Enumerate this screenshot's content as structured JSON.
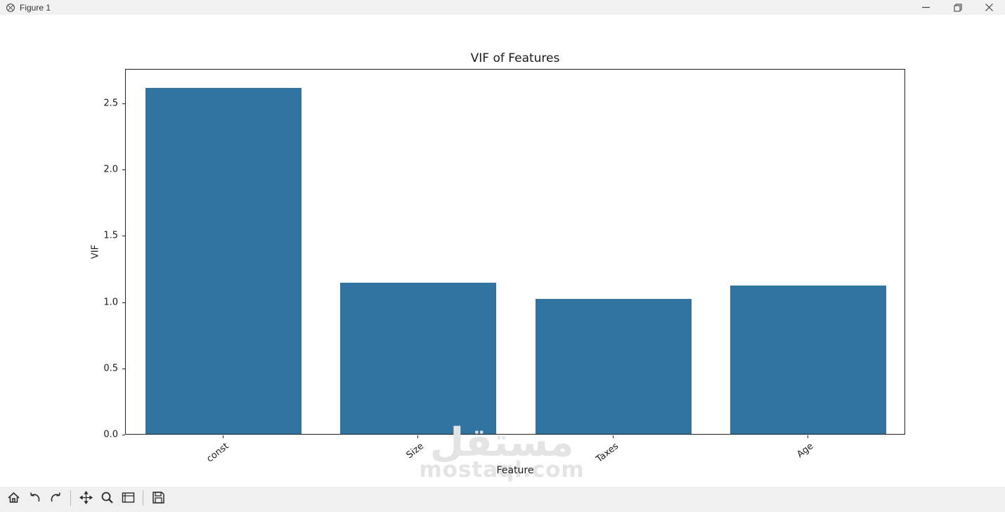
{
  "window": {
    "title": "Figure 1",
    "controls": {
      "minimize": "minimize",
      "restore": "restore",
      "close": "close"
    }
  },
  "chart_data": {
    "type": "bar",
    "title": "VIF of Features",
    "xlabel": "Feature",
    "ylabel": "VIF",
    "categories": [
      "const",
      "Size",
      "Taxes",
      "Age"
    ],
    "values": [
      2.61,
      1.14,
      1.02,
      1.12
    ],
    "ylim": [
      0,
      2.76
    ],
    "yticks": [
      0.0,
      0.5,
      1.0,
      1.5,
      2.0,
      2.5
    ],
    "ytick_labels": [
      "0.0",
      "0.5",
      "1.0",
      "1.5",
      "2.0",
      "2.5"
    ],
    "xtick_rotation_deg": 38,
    "bar_color": "#3274a1",
    "bar_width_frac": 0.8,
    "grid": false,
    "legend": null
  },
  "watermark": {
    "line1": "مستقل",
    "line2": "mostaql.com",
    "color": "#e4e4e4"
  },
  "toolbar": {
    "buttons": [
      "home",
      "back",
      "forward",
      "pan",
      "zoom",
      "configure-subplots",
      "save"
    ]
  }
}
